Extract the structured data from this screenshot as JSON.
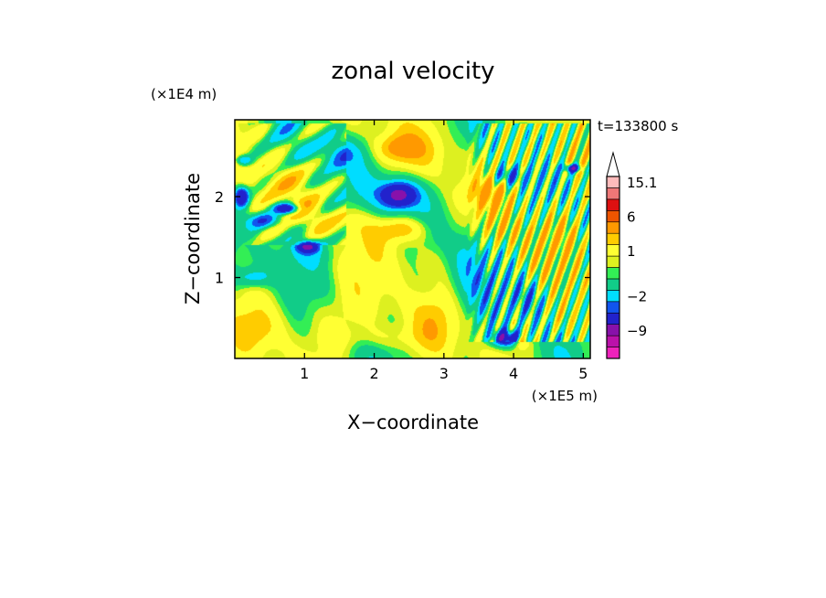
{
  "chart_data": {
    "type": "heatmap",
    "title": "zonal velocity",
    "xlabel": "X−coordinate",
    "ylabel": "Z−coordinate",
    "x_scale_label": "(×1E5 m)",
    "y_scale_label": "(×1E4 m)",
    "time_label": "t=133800 s",
    "xlim": [
      0,
      5.1
    ],
    "ylim": [
      0,
      2.95
    ],
    "x_ticks": [
      {
        "value": 1,
        "label": "1"
      },
      {
        "value": 2,
        "label": "2"
      },
      {
        "value": 3,
        "label": "3"
      },
      {
        "value": 4,
        "label": "4"
      },
      {
        "value": 5,
        "label": "5"
      }
    ],
    "y_ticks": [
      {
        "value": 1,
        "label": "1"
      },
      {
        "value": 2,
        "label": "2"
      }
    ],
    "colorbar": {
      "levels": [
        {
          "value": -15,
          "color": "#ee22bb"
        },
        {
          "value": -12,
          "color": "#bb11aa"
        },
        {
          "value": -9,
          "color": "#8811aa"
        },
        {
          "value": -6,
          "color": "#2222cc"
        },
        {
          "value": -3,
          "color": "#1155ee"
        },
        {
          "value": -2,
          "color": "#00ddff"
        },
        {
          "value": -1,
          "color": "#11cc88"
        },
        {
          "value": 0,
          "color": "#33ee55"
        },
        {
          "value": 0.5,
          "color": "#ddf020"
        },
        {
          "value": 1,
          "color": "#ffff33"
        },
        {
          "value": 2,
          "color": "#ffcc00"
        },
        {
          "value": 3,
          "color": "#ff9900"
        },
        {
          "value": 6,
          "color": "#ee5500"
        },
        {
          "value": 9,
          "color": "#dd1111"
        },
        {
          "value": 12,
          "color": "#ee7777"
        },
        {
          "value": 15.1,
          "color": "#ffbbbb"
        }
      ],
      "labels": [
        {
          "value": 15.1,
          "label": "15.1"
        },
        {
          "value": 6,
          "label": "6"
        },
        {
          "value": 1,
          "label": "1"
        },
        {
          "value": -2,
          "label": "−2"
        },
        {
          "value": -9,
          "label": "−9"
        }
      ],
      "triangle_color": "#ffffff"
    },
    "field": {
      "background_level": 0,
      "blobs": [
        {
          "x": 2.35,
          "z": 2.02,
          "rx": 0.28,
          "rz": 0.17,
          "v": -6
        },
        {
          "x": 2.35,
          "z": 2.02,
          "rx": 0.55,
          "rz": 0.35,
          "v": -2
        },
        {
          "x": 1.45,
          "z": 2.55,
          "rx": 0.5,
          "rz": 0.22,
          "v": -2
        },
        {
          "x": 1.48,
          "z": 1.7,
          "rx": 0.6,
          "rz": 0.25,
          "v": 1
        },
        {
          "x": 2.45,
          "z": 2.6,
          "rx": 0.8,
          "rz": 0.3,
          "v": 1
        },
        {
          "x": 2.35,
          "z": 2.6,
          "rx": 0.35,
          "rz": 0.18,
          "v": 2
        },
        {
          "x": 2.4,
          "z": 1.55,
          "rx": 0.75,
          "rz": 0.32,
          "v": 1
        },
        {
          "x": 2.4,
          "z": 1.6,
          "rx": 0.4,
          "rz": 0.18,
          "v": 2
        },
        {
          "x": 2.7,
          "z": 1.2,
          "rx": 0.45,
          "rz": 0.3,
          "v": 1
        },
        {
          "x": 0.15,
          "z": 1.5,
          "rx": 0.25,
          "rz": 0.5,
          "v": 1
        },
        {
          "x": 0.55,
          "z": 2.2,
          "rx": 0.4,
          "rz": 0.25,
          "v": 1
        },
        {
          "x": 0.45,
          "z": 1.7,
          "rx": 0.35,
          "rz": 0.12,
          "v": -3
        },
        {
          "x": 0.75,
          "z": 1.85,
          "rx": 0.22,
          "rz": 0.08,
          "v": -6
        },
        {
          "x": 0.1,
          "z": 2.0,
          "rx": 0.12,
          "rz": 0.15,
          "v": -6
        },
        {
          "x": 0.12,
          "z": 2.45,
          "rx": 0.15,
          "rz": 0.08,
          "v": -3
        },
        {
          "x": 1.0,
          "z": 1.35,
          "rx": 0.5,
          "rz": 0.28,
          "v": -2
        },
        {
          "x": 1.05,
          "z": 1.38,
          "rx": 0.18,
          "rz": 0.08,
          "v": -6
        },
        {
          "x": 0.25,
          "z": 1.0,
          "rx": 0.35,
          "rz": 0.15,
          "v": -2
        },
        {
          "x": 1.4,
          "z": 0.5,
          "rx": 1.1,
          "rz": 0.45,
          "v": 1
        },
        {
          "x": 0.25,
          "z": 0.35,
          "rx": 0.35,
          "rz": 0.25,
          "v": 1
        },
        {
          "x": 2.1,
          "z": 0.25,
          "rx": 0.9,
          "rz": 0.2,
          "v": 1
        },
        {
          "x": 2.85,
          "z": 0.45,
          "rx": 0.3,
          "rz": 0.35,
          "v": 1
        },
        {
          "x": 3.4,
          "z": 1.2,
          "rx": 0.35,
          "rz": 0.7,
          "v": -2
        },
        {
          "x": 3.65,
          "z": 2.05,
          "rx": 0.45,
          "rz": 0.25,
          "v": 2
        },
        {
          "x": 3.75,
          "z": 1.6,
          "rx": 0.35,
          "rz": 0.25,
          "v": 1
        },
        {
          "x": 3.9,
          "z": 2.25,
          "rx": 0.3,
          "rz": 0.15,
          "v": -3
        },
        {
          "x": 4.5,
          "z": 2.5,
          "rx": 0.55,
          "rz": 0.25,
          "v": 1
        },
        {
          "x": 4.85,
          "z": 2.35,
          "rx": 0.15,
          "rz": 0.06,
          "v": -6
        },
        {
          "x": 4.6,
          "z": 1.55,
          "rx": 0.5,
          "rz": 0.3,
          "v": 1
        },
        {
          "x": 4.25,
          "z": 0.75,
          "rx": 0.35,
          "rz": 0.35,
          "v": -2
        },
        {
          "x": 4.7,
          "z": 0.45,
          "rx": 0.3,
          "rz": 0.3,
          "v": 1
        },
        {
          "x": 3.9,
          "z": 0.25,
          "rx": 0.25,
          "rz": 0.12,
          "v": -6
        },
        {
          "x": 4.1,
          "z": 0.2,
          "rx": 0.15,
          "rz": 0.1,
          "v": 2
        }
      ],
      "waves": [
        {
          "x0": 3.3,
          "x1": 5.1,
          "z0": 0.2,
          "z1": 2.9,
          "kx": 30,
          "kz": 12,
          "amp": 2.2
        },
        {
          "x0": 0.0,
          "x1": 1.6,
          "z0": 1.4,
          "z1": 2.9,
          "kx": 9,
          "kz": 14,
          "amp": 1.2
        }
      ]
    }
  }
}
